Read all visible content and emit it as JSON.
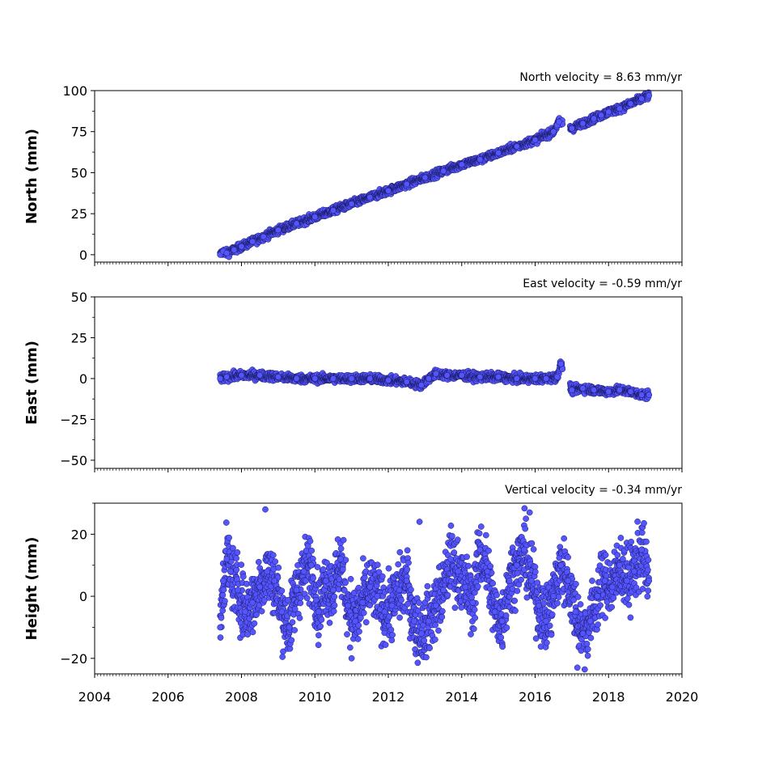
{
  "chart_data": [
    {
      "type": "scatter",
      "title": "North velocity = 8.63 mm/yr",
      "ylabel": "North (mm)",
      "xlim": [
        2004,
        2020
      ],
      "ylim": [
        -4.5,
        100
      ],
      "yticks": [
        0,
        25,
        50,
        75,
        100
      ],
      "x_tick_labels_visible": false,
      "marker_color": "#5555ff",
      "marker_edge": "#1a1a66",
      "series": [
        {
          "x": [
            2007.42,
            2007.5,
            2007.6,
            2007.8,
            2008.0,
            2008.3,
            2008.6,
            2009.0,
            2009.5,
            2010.0,
            2010.5,
            2011.0,
            2011.5,
            2012.0,
            2012.5,
            2013.0,
            2013.5,
            2014.0,
            2014.5,
            2015.0,
            2015.5,
            2016.0,
            2016.5,
            2016.6,
            2016.65,
            2017.0,
            2017.3,
            2017.6,
            2017.8,
            2018.0,
            2018.3,
            2018.6,
            2018.9,
            2019.1
          ],
          "y": [
            0,
            2,
            1,
            3,
            5,
            8,
            11,
            15,
            19,
            23,
            27,
            31,
            35,
            39,
            43,
            47,
            51,
            55,
            58,
            62,
            66,
            70,
            75,
            79,
            81,
            77,
            80,
            83,
            85,
            87,
            89,
            92,
            95,
            97
          ]
        }
      ]
    },
    {
      "type": "scatter",
      "title": "East velocity = -0.59 mm/yr",
      "ylabel": "East (mm)",
      "xlim": [
        2004,
        2020
      ],
      "ylim": [
        -55,
        50
      ],
      "yticks": [
        -50,
        -25,
        0,
        25,
        50
      ],
      "x_tick_labels_visible": false,
      "marker_color": "#5555ff",
      "marker_edge": "#1a1a66",
      "series": [
        {
          "x": [
            2007.42,
            2007.6,
            2008.0,
            2008.5,
            2009.0,
            2009.5,
            2010.0,
            2010.5,
            2011.0,
            2011.5,
            2012.0,
            2012.5,
            2012.9,
            2013.1,
            2013.3,
            2013.6,
            2014.0,
            2014.5,
            2015.0,
            2015.5,
            2016.0,
            2016.3,
            2016.6,
            2016.7,
            2017.0,
            2017.3,
            2017.6,
            2018.0,
            2018.3,
            2018.6,
            2018.9,
            2019.1
          ],
          "y": [
            0,
            1,
            2,
            2,
            1,
            0,
            0,
            0,
            0,
            0,
            -1,
            -2,
            -4,
            0,
            3,
            2,
            2,
            1,
            1,
            0,
            0,
            0,
            1,
            9,
            -7,
            -6,
            -7,
            -8,
            -7,
            -8,
            -10,
            -10
          ]
        }
      ]
    },
    {
      "type": "scatter",
      "title": "Vertical velocity = -0.34 mm/yr",
      "ylabel": "Height (mm)",
      "xlim": [
        2004,
        2020
      ],
      "ylim": [
        -25,
        30
      ],
      "yticks": [
        -20,
        0,
        20
      ],
      "xticks": [
        2004,
        2006,
        2008,
        2010,
        2012,
        2014,
        2016,
        2018,
        2020
      ],
      "x_tick_labels_visible": true,
      "marker_color": "#5555ff",
      "marker_edge": "#1a1a66",
      "series": [
        {
          "x": [
            2007.42,
            2007.5,
            2007.6,
            2007.7,
            2007.9,
            2008.1,
            2008.3,
            2008.5,
            2008.7,
            2008.9,
            2009.1,
            2009.3,
            2009.5,
            2009.7,
            2009.9,
            2010.1,
            2010.3,
            2010.5,
            2010.7,
            2010.9,
            2011.1,
            2011.3,
            2011.5,
            2011.7,
            2011.9,
            2012.1,
            2012.3,
            2012.5,
            2012.7,
            2012.9,
            2013.1,
            2013.3,
            2013.5,
            2013.7,
            2013.9,
            2014.1,
            2014.3,
            2014.5,
            2014.7,
            2014.9,
            2015.1,
            2015.3,
            2015.5,
            2015.7,
            2015.9,
            2016.1,
            2016.3,
            2016.5,
            2016.7,
            2016.9,
            2017.1,
            2017.3,
            2017.5,
            2017.7,
            2017.9,
            2018.1,
            2018.3,
            2018.5,
            2018.7,
            2018.9,
            2019.1,
            2008.65,
            2012.85,
            2015.85,
            2017.15,
            2011.0
          ],
          "y": [
            -10,
            5,
            12,
            8,
            2,
            -5,
            -2,
            3,
            8,
            5,
            -5,
            -10,
            2,
            8,
            10,
            -5,
            5,
            2,
            12,
            -3,
            -8,
            -2,
            3,
            0,
            -5,
            -3,
            2,
            5,
            -8,
            -12,
            -8,
            -3,
            2,
            12,
            8,
            3,
            -2,
            15,
            8,
            -5,
            -8,
            5,
            10,
            15,
            5,
            -3,
            -8,
            0,
            10,
            5,
            -5,
            -12,
            -8,
            0,
            5,
            3,
            10,
            5,
            8,
            15,
            5,
            28,
            24,
            27,
            -23,
            -20
          ]
        }
      ]
    }
  ]
}
